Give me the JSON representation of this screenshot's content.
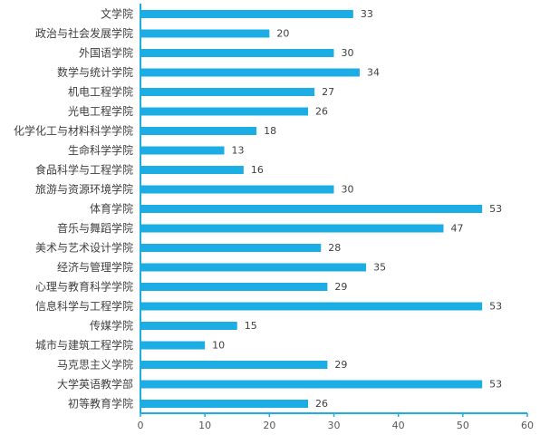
{
  "chart_data": {
    "type": "bar",
    "orientation": "horizontal",
    "title": "",
    "xlabel": "",
    "ylabel": "",
    "categories": [
      "文学院",
      "政治与社会发展学院",
      "外国语学院",
      "数学与统计学院",
      "机电工程学院",
      "光电工程学院",
      "化学化工与材料科学学院",
      "生命科学学院",
      "食品科学与工程学院",
      "旅游与资源环境学院",
      "体育学院",
      "音乐与舞蹈学院",
      "美术与艺术设计学院",
      "经济与管理学院",
      "心理与教育科学学院",
      "信息科学与工程学院",
      "传媒学院",
      "城市与建筑工程学院",
      "马克思主义学院",
      "大学英语教学部",
      "初等教育学院"
    ],
    "values": [
      33,
      20,
      30,
      34,
      27,
      26,
      18,
      13,
      16,
      30,
      53,
      47,
      28,
      35,
      29,
      53,
      15,
      10,
      29,
      53,
      26
    ],
    "xlim": [
      0,
      60
    ],
    "xticks": [
      0,
      10,
      20,
      30,
      40,
      50,
      60
    ],
    "bar_color": "#1CADE4",
    "axis_color": "#1CADE4",
    "grid": false,
    "legend": "none",
    "data_labels": true
  }
}
